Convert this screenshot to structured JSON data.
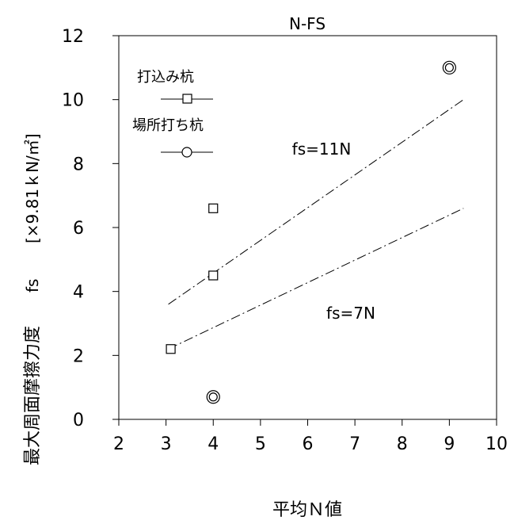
{
  "chart_data": {
    "type": "scatter",
    "title": "N-FS",
    "xlabel": "平均Ｎ値",
    "ylabel_parts": [
      "最大周面摩擦力度",
      "fs",
      "[×9.81ｋN/㎡]"
    ],
    "xlim": [
      2,
      10
    ],
    "ylim": [
      0,
      12
    ],
    "x_ticks": [
      2,
      3,
      4,
      5,
      6,
      7,
      8,
      9,
      10
    ],
    "y_ticks": [
      0,
      2,
      4,
      6,
      8,
      10,
      12
    ],
    "grid": false,
    "legend_position": "top-left",
    "series": [
      {
        "name": "打込み杭",
        "marker": "square",
        "points": [
          {
            "x": 3.1,
            "y": 2.2
          },
          {
            "x": 4.0,
            "y": 4.5
          },
          {
            "x": 4.0,
            "y": 6.6
          }
        ]
      },
      {
        "name": "場所打ち杭",
        "marker": "double-circle",
        "points": [
          {
            "x": 4.0,
            "y": 0.7
          },
          {
            "x": 9.0,
            "y": 11.0
          }
        ]
      }
    ],
    "reference_lines": [
      {
        "label": "fs=11N",
        "points": [
          [
            3.05,
            3.6
          ],
          [
            9.3,
            10.0
          ]
        ]
      },
      {
        "label": "fs=7N",
        "points": [
          [
            3.05,
            2.2
          ],
          [
            9.3,
            6.6
          ]
        ]
      }
    ]
  }
}
